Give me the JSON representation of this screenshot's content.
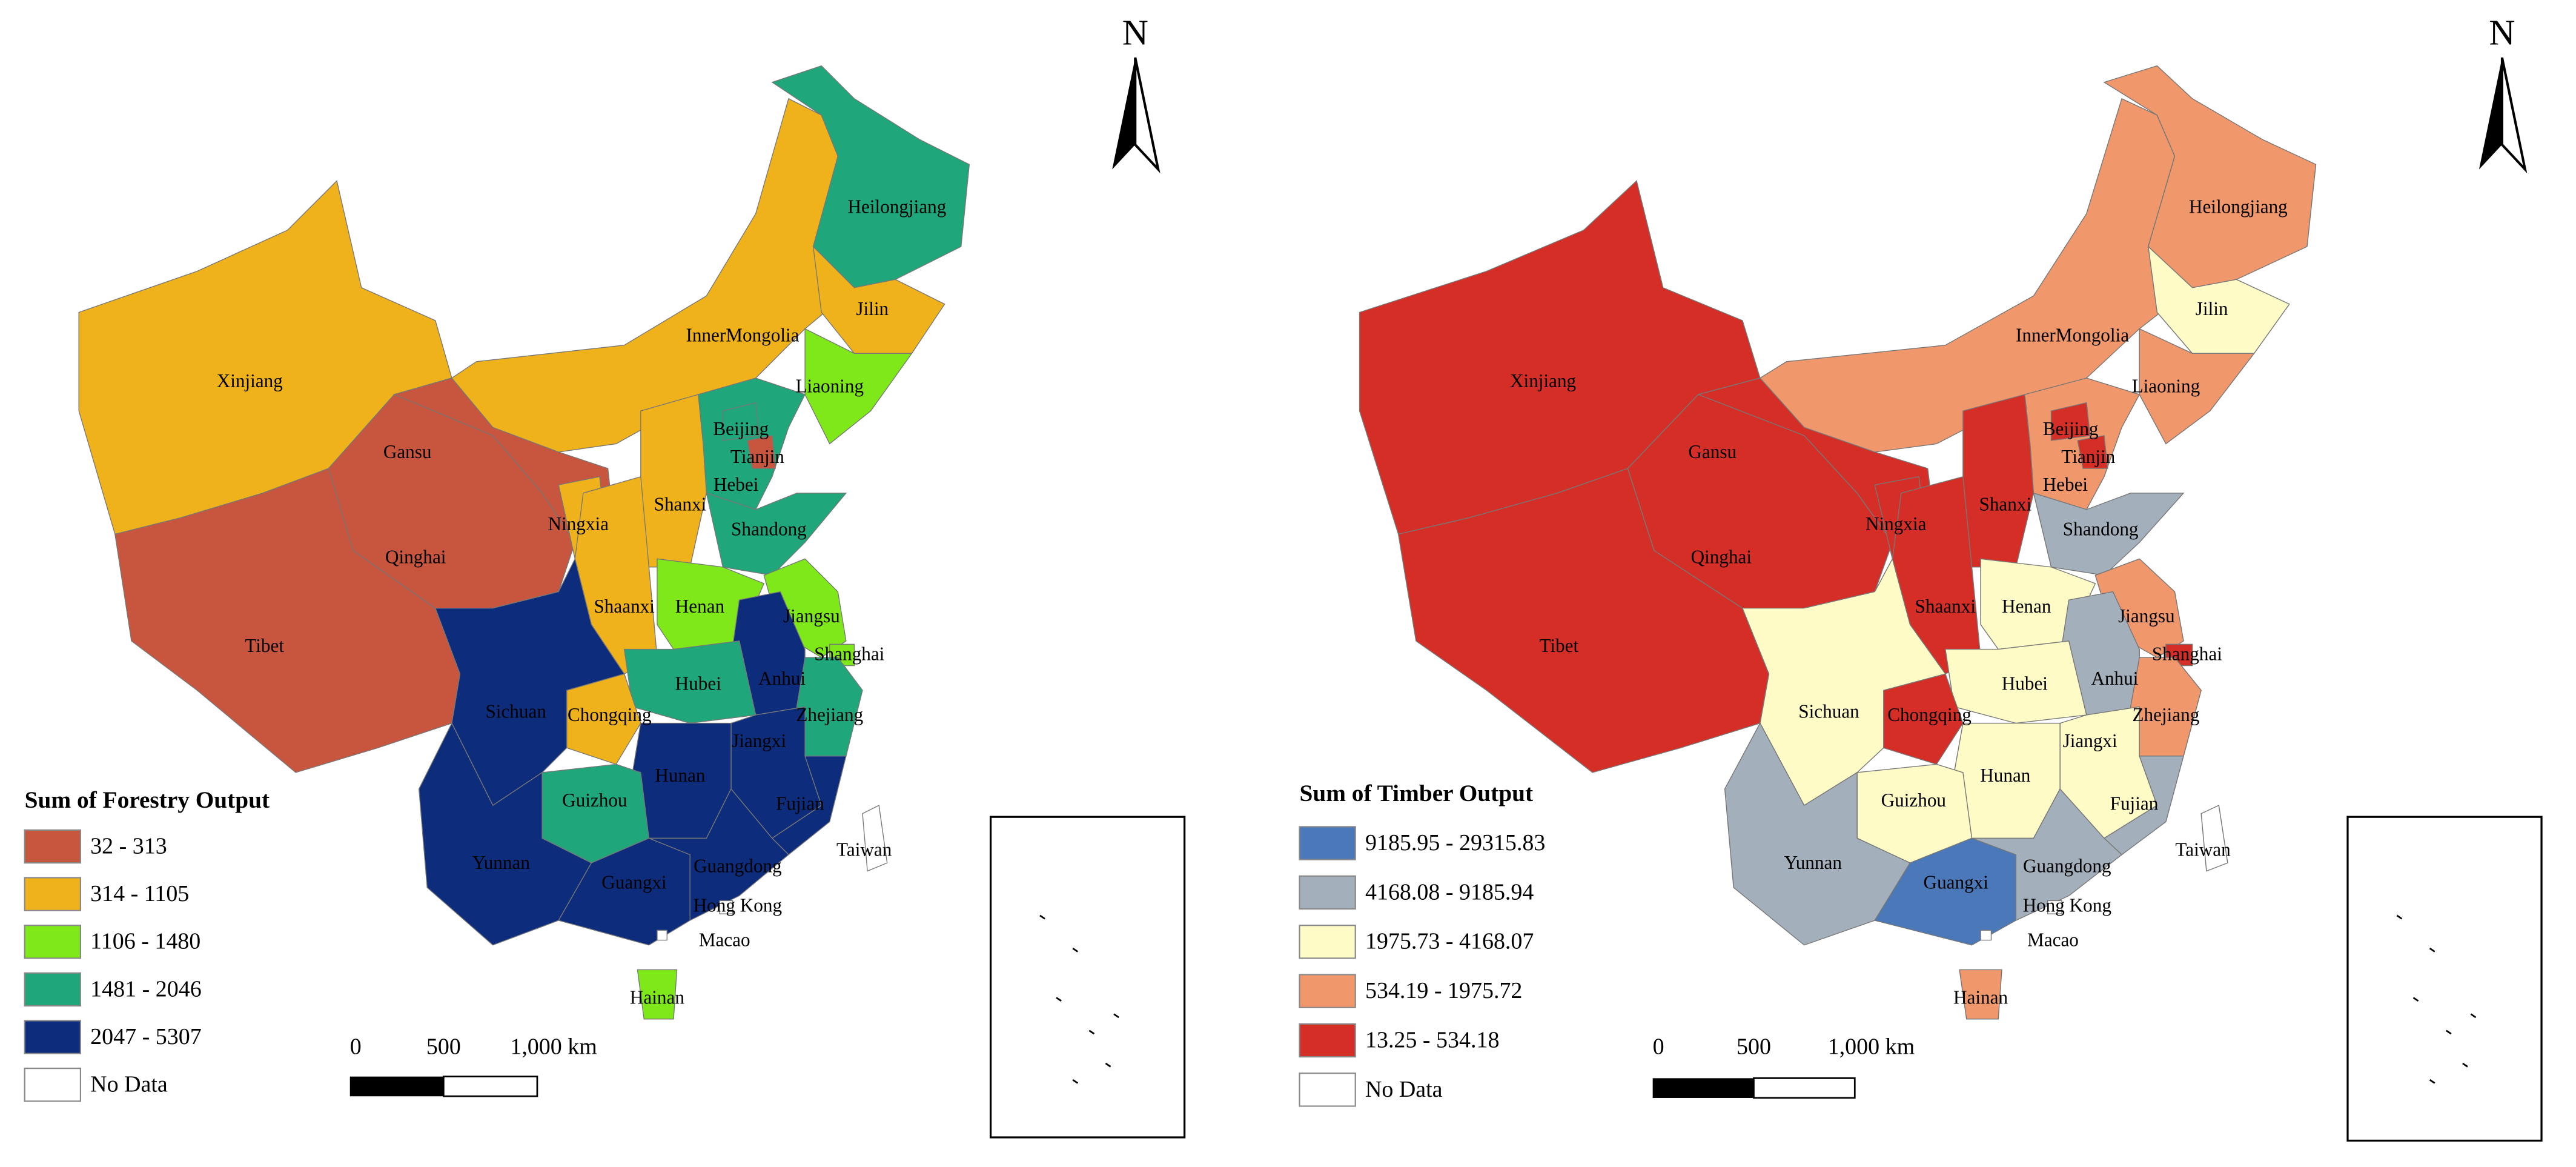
{
  "maps": [
    {
      "title": "Sum of Forestry Output",
      "north": "N",
      "scale_labels": [
        "0",
        "500",
        "1,000 km"
      ],
      "legend": [
        {
          "label": "32 - 313",
          "color": "#c8553d"
        },
        {
          "label": "314 - 1105",
          "color": "#f0b21a"
        },
        {
          "label": "1106 - 1480",
          "color": "#7ee819"
        },
        {
          "label": "1481 - 2046",
          "color": "#1fa67a"
        },
        {
          "label": "2047 - 5307",
          "color": "#0d2c7c"
        },
        {
          "label": "No Data",
          "color": "#ffffff"
        }
      ],
      "regions": [
        {
          "label": "Xinjiang",
          "class": 1
        },
        {
          "label": "Tibet",
          "class": 0
        },
        {
          "label": "Qinghai",
          "class": 0
        },
        {
          "label": "Gansu",
          "class": 0
        },
        {
          "label": "Ningxia",
          "class": 1
        },
        {
          "label": "InnerMongolia",
          "class": 1
        },
        {
          "label": "Heilongjiang",
          "class": 3
        },
        {
          "label": "Jilin",
          "class": 1
        },
        {
          "label": "Liaoning",
          "class": 2
        },
        {
          "label": "Hebei",
          "class": 3
        },
        {
          "label": "Beijing",
          "class": 3
        },
        {
          "label": "Tianjin",
          "class": 0
        },
        {
          "label": "Shanxi",
          "class": 1
        },
        {
          "label": "Shaanxi",
          "class": 1
        },
        {
          "label": "Shandong",
          "class": 3
        },
        {
          "label": "Henan",
          "class": 2
        },
        {
          "label": "Jiangsu",
          "class": 2
        },
        {
          "label": "Shanghai",
          "class": 2
        },
        {
          "label": "Anhui",
          "class": 4
        },
        {
          "label": "Hubei",
          "class": 3
        },
        {
          "label": "Chongqing",
          "class": 1
        },
        {
          "label": "Sichuan",
          "class": 4
        },
        {
          "label": "Zhejiang",
          "class": 3
        },
        {
          "label": "Jiangxi",
          "class": 4
        },
        {
          "label": "Hunan",
          "class": 4
        },
        {
          "label": "Fujian",
          "class": 4
        },
        {
          "label": "Guizhou",
          "class": 3
        },
        {
          "label": "Yunnan",
          "class": 4
        },
        {
          "label": "Guangxi",
          "class": 4
        },
        {
          "label": "Guangdong",
          "class": 4
        },
        {
          "label": "Hainan",
          "class": 2
        },
        {
          "label": "Taiwan",
          "class": 5
        },
        {
          "label": "Hong Kong",
          "class": 5
        },
        {
          "label": "Macao",
          "class": 5
        }
      ]
    },
    {
      "title": "Sum of Timber Output",
      "north": "N",
      "scale_labels": [
        "0",
        "500",
        "1,000 km"
      ],
      "legend": [
        {
          "label": "9185.95 - 29315.83",
          "color": "#4a78b8"
        },
        {
          "label": "4168.08 - 9185.94",
          "color": "#a3b0bb"
        },
        {
          "label": "1975.73 - 4168.07",
          "color": "#fefbc6"
        },
        {
          "label": "534.19 - 1975.72",
          "color": "#f0976b"
        },
        {
          "label": "13.25 - 534.18",
          "color": "#d42e27"
        },
        {
          "label": "No Data",
          "color": "#ffffff"
        }
      ],
      "regions": [
        {
          "label": "Xinjiang",
          "class": 4
        },
        {
          "label": "Tibet",
          "class": 4
        },
        {
          "label": "Qinghai",
          "class": 4
        },
        {
          "label": "Gansu",
          "class": 4
        },
        {
          "label": "Ningxia",
          "class": 4
        },
        {
          "label": "InnerMongolia",
          "class": 3
        },
        {
          "label": "Heilongjiang",
          "class": 3
        },
        {
          "label": "Jilin",
          "class": 2
        },
        {
          "label": "Liaoning",
          "class": 3
        },
        {
          "label": "Hebei",
          "class": 3
        },
        {
          "label": "Beijing",
          "class": 4
        },
        {
          "label": "Tianjin",
          "class": 4
        },
        {
          "label": "Shanxi",
          "class": 4
        },
        {
          "label": "Shaanxi",
          "class": 4
        },
        {
          "label": "Shandong",
          "class": 1
        },
        {
          "label": "Henan",
          "class": 2
        },
        {
          "label": "Jiangsu",
          "class": 3
        },
        {
          "label": "Shanghai",
          "class": 4
        },
        {
          "label": "Anhui",
          "class": 1
        },
        {
          "label": "Hubei",
          "class": 2
        },
        {
          "label": "Chongqing",
          "class": 4
        },
        {
          "label": "Sichuan",
          "class": 2
        },
        {
          "label": "Zhejiang",
          "class": 3
        },
        {
          "label": "Jiangxi",
          "class": 2
        },
        {
          "label": "Hunan",
          "class": 2
        },
        {
          "label": "Fujian",
          "class": 1
        },
        {
          "label": "Guizhou",
          "class": 2
        },
        {
          "label": "Yunnan",
          "class": 1
        },
        {
          "label": "Guangxi",
          "class": 0
        },
        {
          "label": "Guangdong",
          "class": 1
        },
        {
          "label": "Hainan",
          "class": 3
        },
        {
          "label": "Taiwan",
          "class": 5
        },
        {
          "label": "Hong Kong",
          "class": 5
        },
        {
          "label": "Macao",
          "class": 5
        }
      ]
    }
  ]
}
